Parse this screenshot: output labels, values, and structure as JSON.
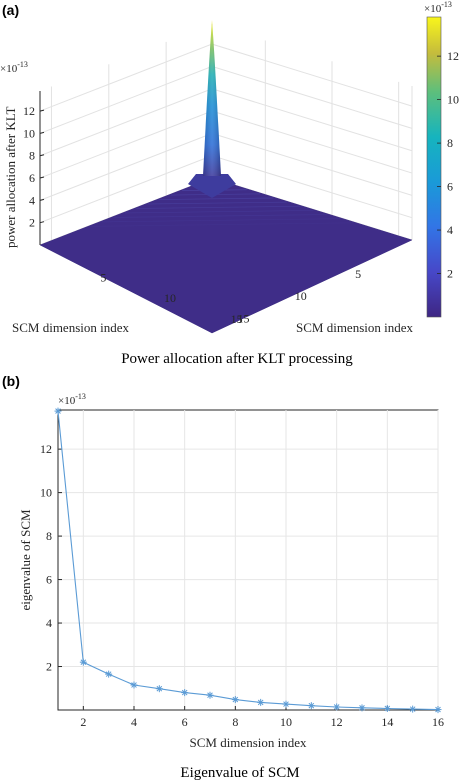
{
  "panels": {
    "a": {
      "label": "(a)",
      "caption": "Power allocation after KLT processing",
      "zlabel": "power allocation after KLT",
      "xlabel": "SCM dimension index",
      "ylabel": "SCM dimension index",
      "z_exponent": "×10",
      "z_exponent_power": "-13",
      "colorbar_exponent": "×10",
      "colorbar_exponent_power": "-13"
    },
    "b": {
      "label": "(b)",
      "caption": "Eigenvalue of SCM",
      "y_exponent": "×10",
      "y_exponent_power": "-13"
    }
  },
  "colors": {
    "line": "#5b9bd5",
    "surface_low": "#3e2f8f",
    "peak_mid": "#2d8fcf",
    "peak_top": "#f5e61a"
  },
  "chart_data": [
    {
      "type": "surface",
      "x_range": [
        1,
        16
      ],
      "y_range": [
        1,
        16
      ],
      "x_ticks": [
        "5",
        "10",
        "15"
      ],
      "y_ticks": [
        "5",
        "10",
        "15"
      ],
      "z_ticks": [
        "2",
        "4",
        "6",
        "8",
        "10",
        "12"
      ],
      "zlim": [
        0,
        13.8
      ],
      "peak": {
        "x": 1,
        "y": 1,
        "z": 13.8
      },
      "colorbar_ticks": [
        "2",
        "4",
        "6",
        "8",
        "10",
        "12"
      ],
      "colorbar_range": [
        0,
        13.8
      ],
      "grid": true
    },
    {
      "type": "line",
      "x": [
        1,
        2,
        3,
        4,
        5,
        6,
        7,
        8,
        9,
        10,
        11,
        12,
        13,
        14,
        15,
        16
      ],
      "values": [
        13.75,
        2.2,
        1.65,
        1.15,
        0.98,
        0.8,
        0.68,
        0.48,
        0.35,
        0.27,
        0.2,
        0.14,
        0.1,
        0.07,
        0.04,
        0.02
      ],
      "xlabel": "SCM dimension index",
      "ylabel": "eigenvalue of SCM",
      "xlim": [
        1,
        16
      ],
      "ylim": [
        0,
        13.8
      ],
      "x_ticks": [
        "2",
        "4",
        "6",
        "8",
        "10",
        "12",
        "14",
        "16"
      ],
      "y_ticks": [
        "2",
        "4",
        "6",
        "8",
        "10",
        "12"
      ],
      "marker": "asterisk",
      "grid": true
    }
  ]
}
